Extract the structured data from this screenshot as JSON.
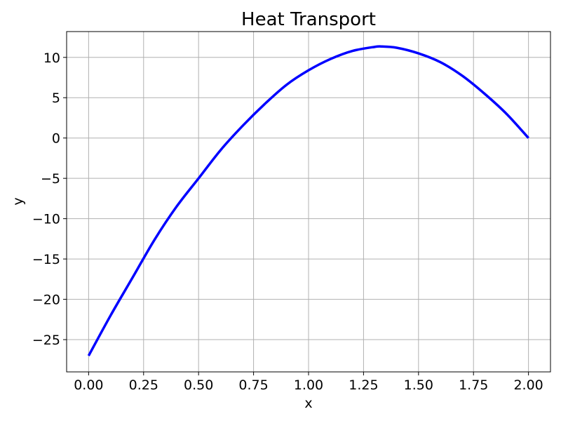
{
  "chart_data": {
    "type": "line",
    "title": "Heat Transport",
    "xlabel": "x",
    "ylabel": "y",
    "xlim": [
      -0.1,
      2.1
    ],
    "ylim": [
      -29,
      13.2
    ],
    "grid": true,
    "x_ticks": [
      0.0,
      0.25,
      0.5,
      0.75,
      1.0,
      1.25,
      1.5,
      1.75,
      2.0
    ],
    "x_tick_labels": [
      "0.00",
      "0.25",
      "0.50",
      "0.75",
      "1.00",
      "1.25",
      "1.50",
      "1.75",
      "2.00"
    ],
    "y_ticks": [
      -25,
      -20,
      -15,
      -10,
      -5,
      0,
      5,
      10
    ],
    "y_tick_labels": [
      "−25",
      "−20",
      "−15",
      "−10",
      "−5",
      "0",
      "5",
      "10"
    ],
    "series": [
      {
        "color": "#0000ff",
        "x": [
          0.0,
          0.1,
          0.2,
          0.3,
          0.4,
          0.5,
          0.6,
          0.7,
          0.8,
          0.9,
          1.0,
          1.1,
          1.2,
          1.3,
          1.333,
          1.4,
          1.5,
          1.6,
          1.7,
          1.8,
          1.9,
          2.0
        ],
        "y": [
          -27.0,
          -22.0,
          -17.3,
          -12.6,
          -8.5,
          -5.0,
          -1.5,
          1.5,
          4.2,
          6.6,
          8.4,
          9.8,
          10.8,
          11.3,
          11.35,
          11.2,
          10.5,
          9.4,
          7.7,
          5.5,
          3.0,
          0.0
        ]
      }
    ]
  }
}
